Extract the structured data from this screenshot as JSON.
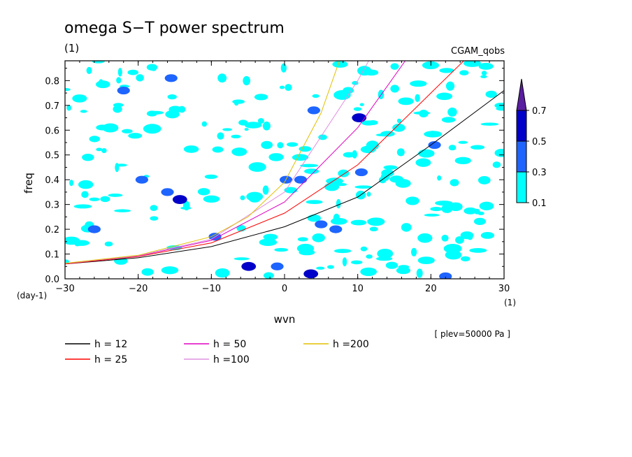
{
  "chart_data": {
    "type": "contour",
    "title": "omega S−T power spectrum",
    "units_label": "(1)",
    "case_label": "CGAM_qobs",
    "xlabel": "wvn",
    "x_units": "(1)",
    "ylabel": "freq",
    "y_units": "(day-1)",
    "level_note": "[ plev=50000 Pa ]",
    "xlim": [
      -30,
      30
    ],
    "ylim": [
      0.0,
      0.88
    ],
    "x_ticks": [
      -30,
      -20,
      -10,
      0,
      10,
      20,
      30
    ],
    "x_tick_labels": [
      "−30",
      "−20",
      "−10",
      "0",
      "10",
      "20",
      "30"
    ],
    "y_ticks": [
      0.0,
      0.1,
      0.2,
      0.3,
      0.4,
      0.5,
      0.6,
      0.7,
      0.8
    ],
    "y_tick_labels": [
      "0.0",
      "0.1",
      "0.2",
      "0.3",
      "0.4",
      "0.5",
      "0.6",
      "0.7",
      "0.8"
    ],
    "colorbar": {
      "levels": [
        "0.1",
        "0.3",
        "0.5",
        "0.7"
      ],
      "colors": [
        "#00ffff",
        "#1e64ff",
        "#0000c8",
        "#5a1ea0"
      ]
    },
    "series": [
      {
        "name": "h = 12",
        "color": "#000000",
        "x": [
          -30,
          -20,
          -10,
          0,
          10,
          20,
          30
        ],
        "y": [
          0.06,
          0.085,
          0.13,
          0.21,
          0.33,
          0.54,
          0.76
        ]
      },
      {
        "name": "h = 25",
        "color": "#ff0000",
        "x": [
          -30,
          -20,
          -10,
          0,
          10,
          20,
          24.5
        ],
        "y": [
          0.06,
          0.09,
          0.145,
          0.265,
          0.46,
          0.75,
          0.88
        ]
      },
      {
        "name": "h = 50",
        "color": "#e000c0",
        "x": [
          -30,
          -20,
          -10,
          0,
          10,
          16.5
        ],
        "y": [
          0.062,
          0.092,
          0.155,
          0.31,
          0.61,
          0.88
        ]
      },
      {
        "name": "h =100",
        "color": "#e090e0",
        "x": [
          -30,
          -20,
          -10,
          0,
          10,
          11.5
        ],
        "y": [
          0.062,
          0.093,
          0.16,
          0.35,
          0.8,
          0.88
        ]
      },
      {
        "name": "h =200",
        "color": "#e0c000",
        "x": [
          -30,
          -20,
          -10,
          -5,
          0,
          5,
          7.5
        ],
        "y": [
          0.063,
          0.095,
          0.17,
          0.25,
          0.39,
          0.67,
          0.88
        ]
      }
    ],
    "contour_patches": [
      {
        "x": -4.9,
        "y": 0.05,
        "level": 3
      },
      {
        "x": -4.9,
        "y": 0.05,
        "level": 2
      },
      {
        "x": 3.6,
        "y": 0.02,
        "level": 2
      },
      {
        "x": 22,
        "y": 0.01,
        "level": 1
      },
      {
        "x": -14.3,
        "y": 0.32,
        "level": 2
      },
      {
        "x": 10.2,
        "y": 0.65,
        "level": 2
      },
      {
        "x": -15.5,
        "y": 0.81,
        "level": 1
      },
      {
        "x": 5,
        "y": 0.22,
        "level": 1
      },
      {
        "x": 2.2,
        "y": 0.4,
        "level": 1
      },
      {
        "x": 0.2,
        "y": 0.4,
        "level": 1
      },
      {
        "x": -9.5,
        "y": 0.17,
        "level": 1
      },
      {
        "x": 20.5,
        "y": 0.54,
        "level": 1
      },
      {
        "x": -19.5,
        "y": 0.4,
        "level": 1
      },
      {
        "x": -16,
        "y": 0.35,
        "level": 1
      },
      {
        "x": -22,
        "y": 0.76,
        "level": 1
      },
      {
        "x": 4,
        "y": 0.68,
        "level": 1
      },
      {
        "x": 10.5,
        "y": 0.43,
        "level": 1
      },
      {
        "x": -26,
        "y": 0.2,
        "level": 1
      },
      {
        "x": 7,
        "y": 0.2,
        "level": 1
      },
      {
        "x": -1,
        "y": 0.05,
        "level": 1
      }
    ]
  },
  "legend": {
    "items": [
      {
        "label": "h = 12",
        "color": "#000000"
      },
      {
        "label": "h = 25",
        "color": "#ff0000"
      },
      {
        "label": "h = 50",
        "color": "#e000c0"
      },
      {
        "label": "h =100",
        "color": "#e090e0"
      },
      {
        "label": "h =200",
        "color": "#e0c000"
      }
    ]
  }
}
